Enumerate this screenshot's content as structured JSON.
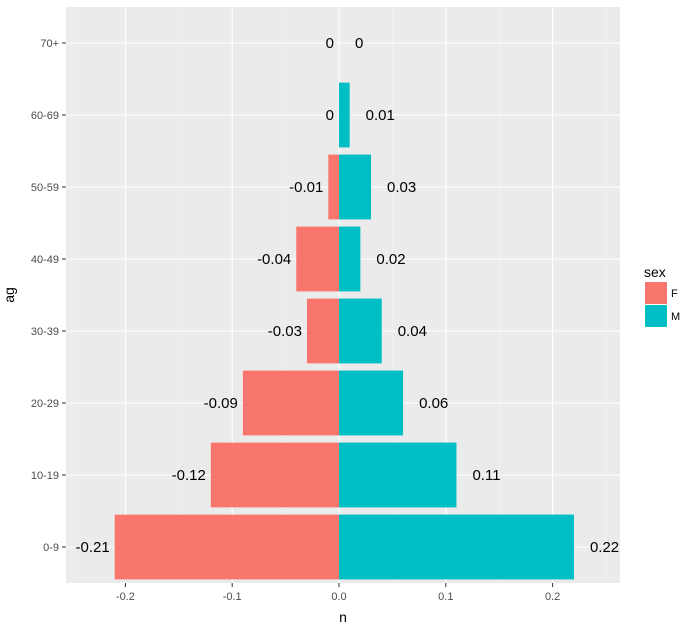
{
  "chart_data": {
    "type": "bar",
    "orientation": "horizontal",
    "categories": [
      "0-9",
      "10-19",
      "20-29",
      "30-39",
      "40-49",
      "50-59",
      "60-69",
      "70+"
    ],
    "series": [
      {
        "name": "F",
        "color": "#F8766D",
        "values": [
          -0.21,
          -0.12,
          -0.09,
          -0.03,
          -0.04,
          -0.01,
          0,
          0
        ]
      },
      {
        "name": "M",
        "color": "#00BFC4",
        "values": [
          0.22,
          0.11,
          0.06,
          0.04,
          0.02,
          0.03,
          0.01,
          0
        ]
      }
    ],
    "labels": {
      "F": [
        "-0.21",
        "-0.12",
        "-0.09",
        "-0.03",
        "-0.04",
        "-0.01",
        "0",
        "0"
      ],
      "M": [
        "0.22",
        "0.11",
        "0.06",
        "0.04",
        "0.02",
        "0.03",
        "0.01",
        "0"
      ]
    },
    "xlabel": "n",
    "ylabel": "ag",
    "xlim": [
      -0.25,
      0.25
    ],
    "xticks": [
      -0.2,
      -0.1,
      0.0,
      0.1,
      0.2
    ],
    "xtick_labels": [
      "-0.2",
      "-0.1",
      "0.0",
      "0.1",
      "0.2"
    ],
    "grid": true,
    "legend": {
      "title": "sex",
      "position": "right",
      "entries": [
        "F",
        "M"
      ]
    }
  }
}
